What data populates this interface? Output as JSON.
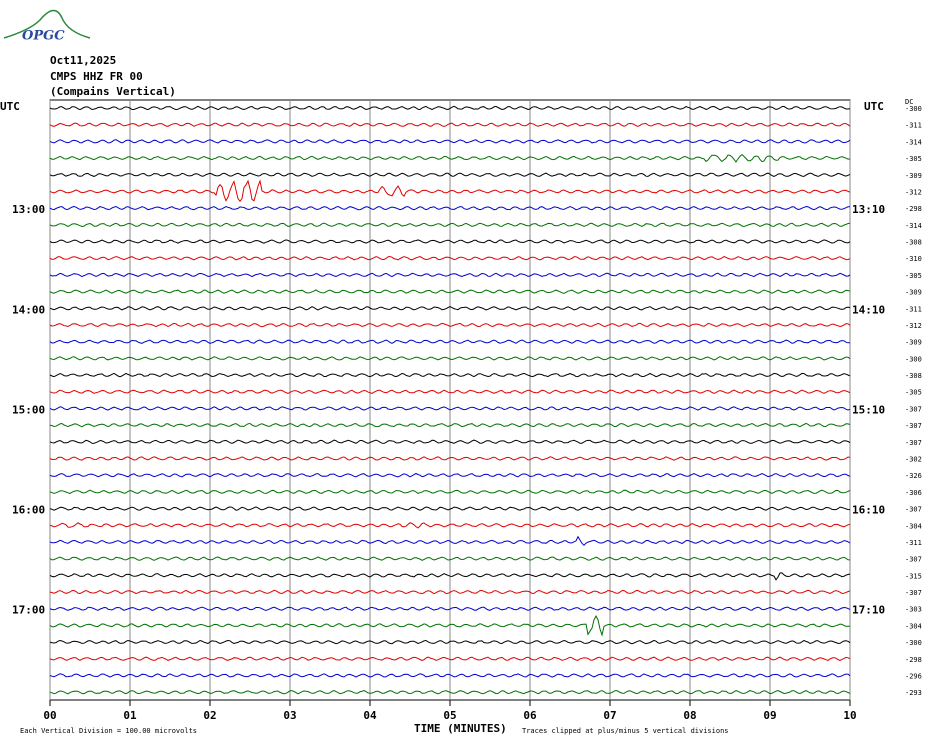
{
  "header": {
    "logo": "OPGC",
    "date": "Oct11,2025",
    "station": "CMPS HHZ FR 00",
    "location": "(Compains Vertical)",
    "utc_left": "UTC",
    "utc_right": "UTC",
    "dc": "DC"
  },
  "left_times": [
    {
      "row": 6,
      "label": "13:00"
    },
    {
      "row": 12,
      "label": "14:00"
    },
    {
      "row": 18,
      "label": "15:00"
    },
    {
      "row": 24,
      "label": "16:00"
    },
    {
      "row": 30,
      "label": "17:00"
    }
  ],
  "right_times": [
    {
      "row": 6,
      "label": "13:10"
    },
    {
      "row": 12,
      "label": "14:10"
    },
    {
      "row": 18,
      "label": "15:10"
    },
    {
      "row": 24,
      "label": "16:10"
    },
    {
      "row": 30,
      "label": "17:10"
    }
  ],
  "dc_offsets": [
    "-300",
    "-311",
    "-314",
    "-305",
    "-309",
    "-312",
    "-298",
    "-314",
    "-308",
    "-310",
    "-305",
    "-309",
    "-311",
    "-312",
    "-309",
    "-300",
    "-308",
    "-305",
    "-307",
    "-307",
    "-307",
    "-302",
    "-326",
    "-306",
    "-307",
    "-304",
    "-311",
    "-307",
    "-315",
    "-307",
    "-303",
    "-304",
    "-300",
    "-298",
    "-296",
    "-293"
  ],
  "trace_colors": [
    "#000000",
    "#e00000",
    "#0000d0",
    "#007000"
  ],
  "x_ticks": [
    "00",
    "01",
    "02",
    "03",
    "04",
    "05",
    "06",
    "07",
    "08",
    "09",
    "10"
  ],
  "footer": {
    "scale": "Each Vertical Division =  100.00 microvolts",
    "x_label": "TIME (MINUTES)",
    "clip": "Traces clipped at plus/minus 5 vertical divisions"
  }
}
